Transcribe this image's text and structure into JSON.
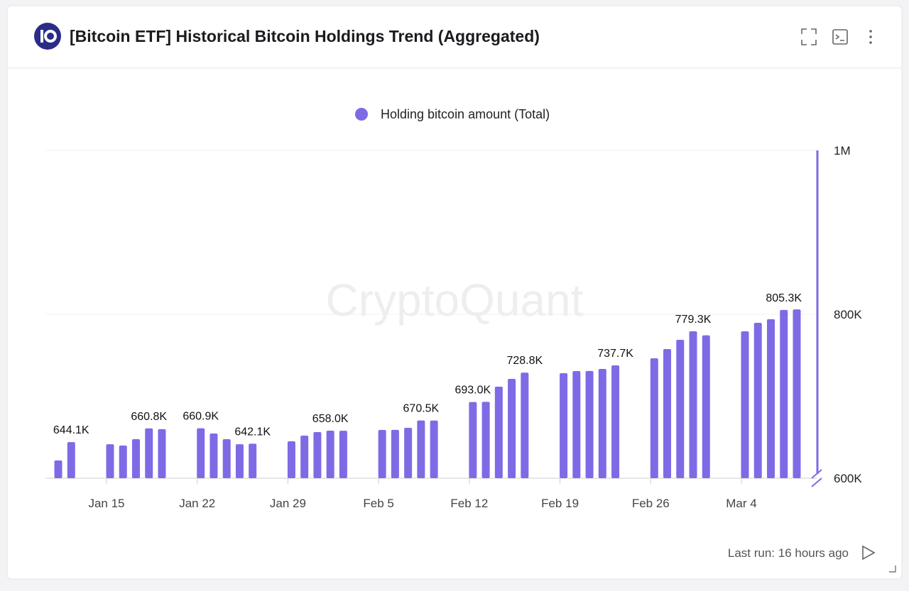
{
  "header": {
    "title": "[Bitcoin ETF] Historical Bitcoin Holdings Trend (Aggregated)"
  },
  "watermark": "CryptoQuant",
  "footer": {
    "last_run": "Last run: 16 hours ago"
  },
  "chart_data": {
    "type": "bar",
    "x": [
      "Jan 11",
      "Jan 12",
      "Jan 15",
      "Jan 16",
      "Jan 17",
      "Jan 18",
      "Jan 19",
      "Jan 22",
      "Jan 23",
      "Jan 24",
      "Jan 25",
      "Jan 26",
      "Jan 29",
      "Jan 30",
      "Jan 31",
      "Feb 1",
      "Feb 2",
      "Feb 5",
      "Feb 6",
      "Feb 7",
      "Feb 8",
      "Feb 9",
      "Feb 12",
      "Feb 13",
      "Feb 14",
      "Feb 15",
      "Feb 16",
      "Feb 19",
      "Feb 20",
      "Feb 21",
      "Feb 22",
      "Feb 23",
      "Feb 26",
      "Feb 27",
      "Feb 28",
      "Feb 29",
      "Mar 1",
      "Mar 4",
      "Mar 5",
      "Mar 6",
      "Mar 7",
      "Mar 8"
    ],
    "series": [
      {
        "name": "Holding bitcoin amount (Total)",
        "color": "#7f6ae6",
        "values": [
          621600,
          644100,
          641500,
          639800,
          647600,
          660800,
          659900,
          660900,
          654500,
          647600,
          641500,
          642100,
          645000,
          652000,
          656300,
          658000,
          657900,
          658900,
          659000,
          661500,
          670500,
          670400,
          693000,
          693200,
          711700,
          721200,
          728800,
          728100,
          730700,
          730800,
          733300,
          737700,
          746300,
          757600,
          768800,
          779300,
          774300,
          779200,
          789600,
          794000,
          805300,
          806000
        ],
        "value_labels": [
          null,
          "644.1K",
          null,
          null,
          null,
          "660.8K",
          null,
          "660.9K",
          null,
          null,
          null,
          "642.1K",
          null,
          null,
          null,
          "658.0K",
          null,
          null,
          null,
          null,
          "670.5K",
          null,
          "693.0K",
          null,
          null,
          null,
          "728.8K",
          null,
          null,
          null,
          null,
          "737.7K",
          null,
          null,
          null,
          "779.3K",
          null,
          null,
          null,
          null,
          "805.3K",
          null
        ]
      }
    ],
    "xticks": [
      "Jan 15",
      "Jan 22",
      "Jan 29",
      "Feb 5",
      "Feb 12",
      "Feb 19",
      "Feb 26",
      "Mar 4"
    ],
    "ylim": [
      600000,
      1000000
    ],
    "yticks": [
      {
        "value": 600000,
        "label": "600K"
      },
      {
        "value": 800000,
        "label": "800K"
      },
      {
        "value": 1000000,
        "label": "1M"
      }
    ],
    "grid": true,
    "legend": "top"
  }
}
